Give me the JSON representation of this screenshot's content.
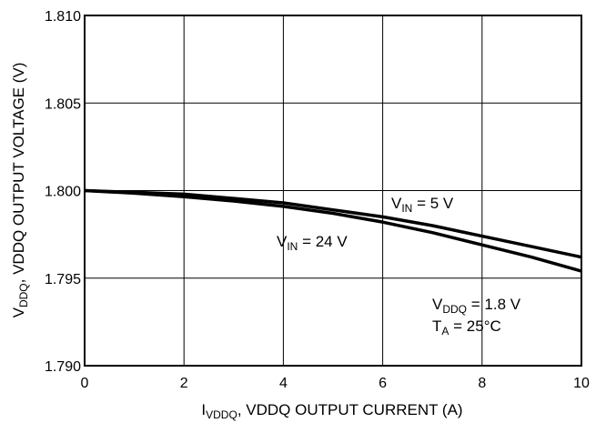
{
  "chart_data": {
    "type": "line",
    "xlim": [
      0,
      10
    ],
    "ylim": [
      1.79,
      1.81
    ],
    "x_ticks": [
      "0",
      "2",
      "4",
      "6",
      "8",
      "10"
    ],
    "y_ticks": [
      "1.790",
      "1.795",
      "1.800",
      "1.805",
      "1.810"
    ],
    "grid": true,
    "xlabel": {
      "main": "I",
      "sub": "VDDQ",
      "rest": ", VDDQ OUTPUT CURRENT (A)"
    },
    "ylabel": {
      "main": "V",
      "sub": "DDQ",
      "rest": ", VDDQ OUTPUT VOLTAGE (V)"
    },
    "series": [
      {
        "label_main": "V",
        "label_sub": "IN",
        "label_rest": " = 5 V",
        "x": [
          0,
          1,
          2,
          3,
          4,
          5,
          6,
          7,
          8,
          9,
          10
        ],
        "y": [
          1.8,
          1.79985,
          1.79965,
          1.7994,
          1.7991,
          1.7987,
          1.7982,
          1.7976,
          1.7969,
          1.7962,
          1.7954
        ]
      },
      {
        "label_main": "V",
        "label_sub": "IN",
        "label_rest": " = 24 V",
        "x": [
          0,
          1,
          2,
          3,
          4,
          5,
          6,
          7,
          8,
          9,
          10
        ],
        "y": [
          1.8,
          1.7999,
          1.7998,
          1.79955,
          1.7993,
          1.7989,
          1.7985,
          1.798,
          1.7974,
          1.7968,
          1.7962
        ]
      }
    ],
    "conditions": [
      {
        "main": "V",
        "sub": "DDQ",
        "rest": " = 1.8 V"
      },
      {
        "main": "T",
        "sub": "A",
        "rest": " = 25°C"
      }
    ],
    "line_color": "#000000",
    "grid_color": "#000000"
  }
}
